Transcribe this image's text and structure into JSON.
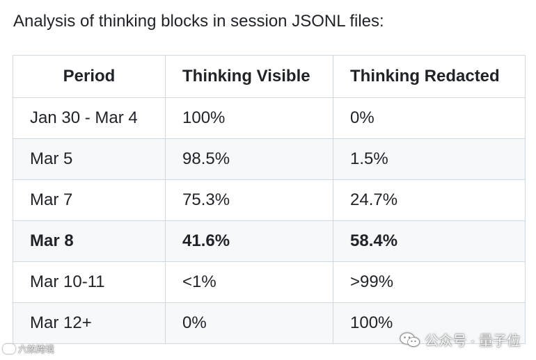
{
  "intro_text": "Analysis of thinking blocks in session JSONL files:",
  "table": {
    "headers": [
      "Period",
      "Thinking Visible",
      "Thinking Redacted"
    ],
    "rows": [
      {
        "period": "Jan 30 - Mar 4",
        "visible": "100%",
        "redacted": "0%"
      },
      {
        "period": "Mar 5",
        "visible": "98.5%",
        "redacted": "1.5%"
      },
      {
        "period": "Mar 7",
        "visible": "75.3%",
        "redacted": "24.7%"
      },
      {
        "period": "Mar 8",
        "visible": "41.6%",
        "redacted": "58.4%"
      },
      {
        "period": "Mar 10-11",
        "visible": "<1%",
        "redacted": ">99%"
      },
      {
        "period": "Mar 12+",
        "visible": "0%",
        "redacted": "100%"
      }
    ]
  },
  "watermarks": {
    "left": "六畝跨境",
    "right": "公众号 · 量子位"
  },
  "colors": {
    "border": "#d1d9e0",
    "alt_row": "#f6f8fa",
    "text": "#1f2328"
  }
}
